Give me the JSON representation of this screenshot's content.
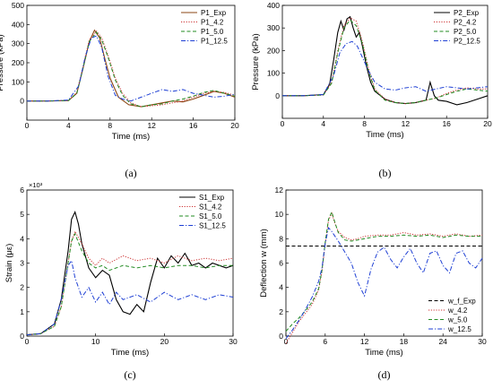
{
  "figure": {
    "panels": [
      {
        "id": "a",
        "label": "(a)"
      },
      {
        "id": "b",
        "label": "(b)"
      },
      {
        "id": "c",
        "label": "(c)"
      },
      {
        "id": "d",
        "label": "(d)"
      }
    ]
  },
  "chart_data": [
    {
      "type": "line",
      "panel": "(a)",
      "xlabel": "Time (ms)",
      "ylabel": "Pressure (kPa)",
      "xlim": [
        0,
        20
      ],
      "ylim": [
        -100,
        500
      ],
      "xticks": [
        0,
        4,
        8,
        12,
        16,
        20
      ],
      "yticks": [
        0,
        100,
        200,
        300,
        400,
        500
      ],
      "legend_position": "top-right",
      "series": [
        {
          "name": "P1_Exp",
          "color": "#8b4513",
          "dash": "solid",
          "x": [
            0,
            2,
            4,
            4.8,
            5.4,
            6,
            6.5,
            7,
            7.5,
            8,
            8.8,
            9.8,
            11,
            12,
            13,
            14,
            15,
            16,
            17,
            18,
            19,
            20
          ],
          "y": [
            0,
            0,
            2,
            40,
            170,
            310,
            370,
            330,
            220,
            120,
            20,
            -20,
            -30,
            -20,
            -10,
            0,
            -5,
            10,
            30,
            50,
            40,
            20
          ]
        },
        {
          "name": "P1_4.2",
          "color": "#cc3333",
          "dash": "dot",
          "x": [
            0,
            2,
            4,
            4.8,
            5.4,
            6,
            6.7,
            7.2,
            7.8,
            8.5,
            9.2,
            10,
            11,
            12,
            13,
            14,
            15,
            16,
            17,
            18,
            19,
            20
          ],
          "y": [
            0,
            0,
            2,
            45,
            180,
            320,
            365,
            330,
            240,
            120,
            40,
            -10,
            -30,
            -25,
            -20,
            -10,
            0,
            20,
            40,
            50,
            45,
            30
          ]
        },
        {
          "name": "P1_5.0",
          "color": "#228b22",
          "dash": "dash",
          "x": [
            0,
            2,
            4,
            4.8,
            5.4,
            6,
            6.7,
            7.2,
            7.8,
            8.5,
            9.2,
            10,
            11,
            12,
            13,
            14,
            15,
            16,
            17,
            18,
            19,
            20
          ],
          "y": [
            0,
            0,
            2,
            40,
            170,
            310,
            360,
            320,
            230,
            110,
            30,
            -15,
            -30,
            -20,
            -15,
            0,
            10,
            25,
            45,
            55,
            40,
            25
          ]
        },
        {
          "name": "P1_12.5",
          "color": "#1e3fd4",
          "dash": "dashdot",
          "x": [
            0,
            2,
            4,
            5,
            5.6,
            6.2,
            6.7,
            7.2,
            7.8,
            8.5,
            9.2,
            10,
            11,
            12,
            13,
            14,
            15,
            16,
            17,
            18,
            19,
            20
          ],
          "y": [
            0,
            0,
            5,
            80,
            230,
            330,
            340,
            280,
            130,
            30,
            10,
            0,
            20,
            40,
            60,
            50,
            60,
            40,
            30,
            20,
            25,
            35
          ]
        }
      ]
    },
    {
      "type": "line",
      "panel": "(b)",
      "xlabel": "Time (ms)",
      "ylabel": "Pressure (kPa)",
      "xlim": [
        0,
        20
      ],
      "ylim": [
        -100,
        400
      ],
      "xticks": [
        0,
        4,
        8,
        12,
        16,
        20
      ],
      "yticks": [
        0,
        100,
        200,
        300,
        400
      ],
      "legend_position": "top-right",
      "series": [
        {
          "name": "P2_Exp",
          "color": "#000000",
          "dash": "solid",
          "x": [
            0,
            2,
            4,
            4.6,
            5,
            5.4,
            5.7,
            6,
            6.3,
            6.6,
            6.9,
            7.2,
            7.5,
            7.8,
            8.2,
            8.6,
            9,
            10,
            11,
            12,
            13,
            14,
            14.4,
            14.8,
            15.2,
            16,
            17,
            18,
            19,
            20
          ],
          "y": [
            0,
            0,
            5,
            50,
            160,
            280,
            330,
            290,
            340,
            350,
            300,
            260,
            280,
            220,
            130,
            60,
            20,
            -15,
            -30,
            -35,
            -30,
            -20,
            60,
            0,
            -20,
            -25,
            -40,
            -30,
            -15,
            0
          ]
        },
        {
          "name": "P2_4.2",
          "color": "#cc3333",
          "dash": "dot",
          "x": [
            0,
            2,
            4,
            4.8,
            5.4,
            6,
            6.6,
            7.2,
            7.8,
            8.4,
            9,
            10,
            11,
            12,
            13,
            14,
            15,
            16,
            17,
            18,
            19,
            20
          ],
          "y": [
            0,
            0,
            3,
            60,
            200,
            310,
            345,
            330,
            240,
            120,
            30,
            -15,
            -30,
            -35,
            -30,
            -20,
            -10,
            10,
            25,
            35,
            30,
            30
          ]
        },
        {
          "name": "P2_5.0",
          "color": "#228b22",
          "dash": "dash",
          "x": [
            0,
            2,
            4,
            4.8,
            5.4,
            6,
            6.6,
            7.2,
            7.8,
            8.4,
            9,
            10,
            11,
            12,
            13,
            14,
            15,
            16,
            17,
            18,
            19,
            20
          ],
          "y": [
            0,
            0,
            3,
            55,
            190,
            300,
            335,
            310,
            230,
            110,
            25,
            -20,
            -30,
            -35,
            -30,
            -20,
            -10,
            5,
            20,
            30,
            25,
            20
          ]
        },
        {
          "name": "P2_12.5",
          "color": "#1e3fd4",
          "dash": "dashdot",
          "x": [
            0,
            2,
            4,
            5,
            5.6,
            6.2,
            6.8,
            7.3,
            7.8,
            8.4,
            9,
            10,
            11,
            12,
            13,
            14,
            15,
            16,
            17,
            18,
            19,
            20
          ],
          "y": [
            0,
            0,
            5,
            90,
            190,
            230,
            240,
            220,
            170,
            110,
            60,
            30,
            25,
            35,
            40,
            20,
            30,
            40,
            35,
            30,
            35,
            40
          ]
        }
      ]
    },
    {
      "type": "line",
      "panel": "(c)",
      "xlabel": "Time (ms)",
      "ylabel": "Strain (με)",
      "multiplier": "×10³",
      "xlim": [
        0,
        30
      ],
      "ylim": [
        0,
        6
      ],
      "xticks": [
        0,
        10,
        20,
        30
      ],
      "yticks": [
        0,
        1,
        2,
        3,
        4,
        5,
        6
      ],
      "legend_position": "top-right",
      "series": [
        {
          "name": "S1_Exp",
          "color": "#000000",
          "dash": "solid",
          "x": [
            0,
            2,
            4,
            5,
            6,
            6.5,
            7,
            7.5,
            8,
            9,
            10,
            11,
            12,
            13,
            14,
            15,
            16,
            17,
            18,
            19,
            20,
            21,
            22,
            23,
            24,
            25,
            26,
            27,
            28,
            29,
            30
          ],
          "y": [
            0.05,
            0.1,
            0.5,
            1.5,
            3.5,
            4.8,
            5.1,
            4.6,
            3.8,
            2.8,
            2.4,
            2.7,
            2.5,
            1.5,
            1.0,
            0.9,
            1.3,
            1.0,
            2.2,
            3.2,
            2.8,
            3.3,
            3.0,
            3.4,
            2.9,
            3.0,
            2.8,
            3.0,
            2.9,
            2.8,
            2.9
          ]
        },
        {
          "name": "S1_4.2",
          "color": "#cc3333",
          "dash": "dot",
          "x": [
            0,
            2,
            4,
            5,
            6,
            6.5,
            7,
            8,
            9,
            10,
            11,
            12,
            14,
            16,
            18,
            20,
            22,
            24,
            26,
            28,
            30
          ],
          "y": [
            0.05,
            0.1,
            0.4,
            1.2,
            3.0,
            3.9,
            4.3,
            3.8,
            3.2,
            2.9,
            3.2,
            3.0,
            3.3,
            3.1,
            3.2,
            3.0,
            3.3,
            3.1,
            3.2,
            3.1,
            3.2
          ]
        },
        {
          "name": "S1_5.0",
          "color": "#228b22",
          "dash": "dash",
          "x": [
            0,
            2,
            4,
            5,
            6,
            6.5,
            7,
            8,
            9,
            10,
            11,
            12,
            14,
            16,
            18,
            20,
            22,
            24,
            26,
            28,
            30
          ],
          "y": [
            0.05,
            0.1,
            0.4,
            1.2,
            3.0,
            3.9,
            4.2,
            3.5,
            3.0,
            2.8,
            2.9,
            2.7,
            2.9,
            2.8,
            2.9,
            2.8,
            2.9,
            2.9,
            2.8,
            2.9,
            2.9
          ]
        },
        {
          "name": "S1_12.5",
          "color": "#1e3fd4",
          "dash": "dashdot",
          "x": [
            0,
            2,
            4,
            5,
            6,
            6.5,
            7,
            8,
            9,
            10,
            11,
            12,
            13,
            14,
            16,
            18,
            20,
            22,
            24,
            26,
            28,
            30
          ],
          "y": [
            0.05,
            0.1,
            0.5,
            1.5,
            2.9,
            3.1,
            2.4,
            1.6,
            2.0,
            1.4,
            1.8,
            1.3,
            1.8,
            1.5,
            1.7,
            1.4,
            1.8,
            1.5,
            1.7,
            1.5,
            1.7,
            1.6
          ]
        }
      ]
    },
    {
      "type": "line",
      "panel": "(d)",
      "xlabel": "Time (ms)",
      "ylabel": "Deflection w (mm)",
      "xlim": [
        0,
        30
      ],
      "ylim": [
        0,
        12
      ],
      "xticks": [
        0,
        6,
        12,
        18,
        24,
        30
      ],
      "yticks": [
        0,
        2,
        4,
        6,
        8,
        10,
        12
      ],
      "legend_position": "bottom-right",
      "series": [
        {
          "name": "w_f_Exp",
          "color": "#000000",
          "dash": "dash",
          "x": [
            0,
            30
          ],
          "y": [
            7.4,
            7.4
          ]
        },
        {
          "name": "w_4.2",
          "color": "#cc3333",
          "dash": "dot",
          "x": [
            0,
            1,
            2,
            3,
            4,
            5,
            5.5,
            6,
            6.5,
            7,
            7.5,
            8,
            9,
            10,
            11,
            12,
            14,
            16,
            18,
            20,
            22,
            24,
            26,
            28,
            30
          ],
          "y": [
            -0.6,
            0.3,
            1.2,
            1.9,
            2.6,
            3.8,
            5.3,
            7.6,
            9.5,
            10.1,
            9.2,
            8.6,
            8.1,
            7.9,
            8.0,
            8.2,
            8.3,
            8.3,
            8.5,
            8.3,
            8.4,
            8.2,
            8.4,
            8.2,
            8.3
          ]
        },
        {
          "name": "w_5.0",
          "color": "#228b22",
          "dash": "dash",
          "x": [
            0,
            1,
            2,
            3,
            4,
            5,
            5.5,
            6,
            6.5,
            7,
            7.5,
            8,
            9,
            10,
            11,
            12,
            14,
            16,
            18,
            20,
            22,
            24,
            26,
            28,
            30
          ],
          "y": [
            0.4,
            1.0,
            1.5,
            2.1,
            2.8,
            3.9,
            5.4,
            7.7,
            9.6,
            10.2,
            9.3,
            8.5,
            7.9,
            7.8,
            7.9,
            8.0,
            8.2,
            8.2,
            8.3,
            8.2,
            8.3,
            8.1,
            8.3,
            8.2,
            8.2
          ]
        },
        {
          "name": "w_12.5",
          "color": "#1e3fd4",
          "dash": "dashdot",
          "x": [
            0,
            1,
            2,
            3,
            4,
            5,
            5.5,
            6,
            6.5,
            7,
            8,
            9,
            10,
            11,
            12,
            13,
            14,
            15,
            16,
            17,
            18,
            19,
            20,
            21,
            22,
            23,
            24,
            25,
            26,
            27,
            28,
            29,
            30
          ],
          "y": [
            -0.2,
            0.5,
            1.3,
            2.2,
            3.2,
            4.5,
            5.6,
            7.6,
            8.9,
            8.6,
            7.8,
            6.9,
            6.0,
            4.4,
            3.3,
            5.5,
            6.9,
            7.3,
            6.3,
            5.6,
            6.5,
            7.2,
            6.0,
            5.2,
            6.8,
            7.0,
            5.8,
            5.2,
            6.8,
            7.0,
            6.0,
            5.6,
            6.4
          ]
        }
      ]
    }
  ]
}
